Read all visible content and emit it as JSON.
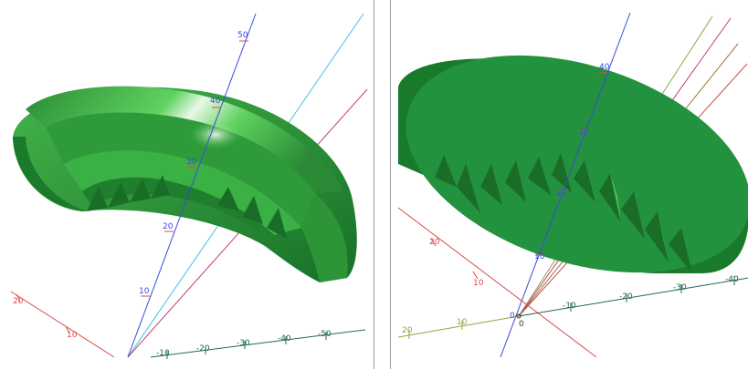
{
  "colors": {
    "axis_blue": "#3b4bd6",
    "axis_red": "#e04848",
    "axis_green_dark": "#1f6b46",
    "axis_green_light": "#8aa843",
    "axis_cyan": "#3fc3e0",
    "axis_magenta": "#c23a7a",
    "part_green_light": "#5fd25f",
    "part_green_mid": "#34a040",
    "part_green_dark": "#1b7a2b",
    "part_green_face": "#23923f"
  },
  "left_view": {
    "blue_axis_ticks": [
      "50",
      "40",
      "30",
      "20",
      "10"
    ],
    "red_axis_ticks": [
      "20",
      "10"
    ],
    "green_axis_ticks": [
      "-10",
      "-20",
      "-30",
      "-40",
      "-50"
    ]
  },
  "right_view": {
    "blue_axis_ticks": [
      "40",
      "30",
      "20",
      "10",
      "0"
    ],
    "red_axis_ticks": [
      "20",
      "10"
    ],
    "green_axis_ticks": [
      "-10",
      "-20",
      "-30",
      "-40"
    ],
    "olive_axis_ticks": [
      "20",
      "10"
    ],
    "origin_label": "0"
  }
}
